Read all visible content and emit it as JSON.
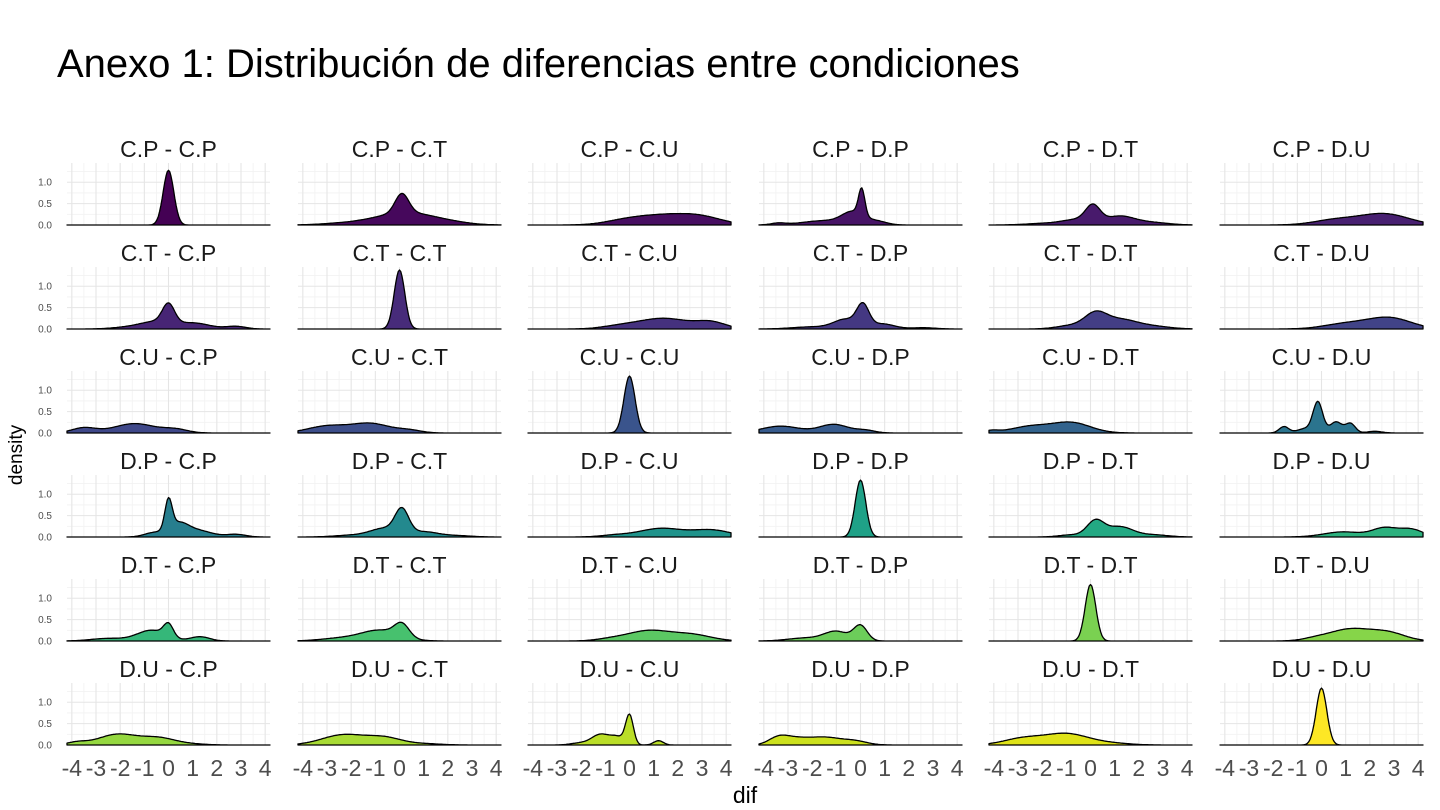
{
  "chart_data": {
    "type": "area",
    "title": "Anexo 1: Distribución de diferencias entre condiciones",
    "xlabel": "dif",
    "ylabel": "density",
    "xlim": [
      -4.2,
      4.2
    ],
    "ylim": [
      0,
      1.45
    ],
    "x_ticks": [
      -4,
      -3,
      -2,
      -1,
      0,
      1,
      2,
      3,
      4
    ],
    "x_tick_labels": [
      "-4",
      "-3",
      "-2",
      "-1",
      "0",
      "1",
      "2",
      "3",
      "4"
    ],
    "y_ticks": [
      0,
      0.5,
      1
    ],
    "y_tick_labels": [
      "0.0",
      "0.5",
      "1.0"
    ],
    "grid": true,
    "legend": "none",
    "facet_rows": 6,
    "facet_cols": 6,
    "panels": [
      {
        "label": "C.P - C.P",
        "color": "#440154",
        "peaks": [
          [
            0,
            1.28,
            0.22
          ]
        ]
      },
      {
        "label": "C.P - C.T",
        "color": "#46075A",
        "peaks": [
          [
            0.1,
            0.45,
            0.28
          ],
          [
            -0.3,
            0.2,
            1.0
          ],
          [
            0.9,
            0.15,
            0.9
          ],
          [
            -2.3,
            0.04,
            0.9
          ],
          [
            2.2,
            0.05,
            0.8
          ]
        ]
      },
      {
        "label": "C.P - C.U",
        "color": "#470D60",
        "peaks": [
          [
            1.3,
            0.22,
            1.2
          ],
          [
            3,
            0.15,
            0.9
          ],
          [
            -0.3,
            0.06,
            0.8
          ]
        ]
      },
      {
        "label": "C.P - D.P",
        "color": "#471365",
        "peaks": [
          [
            0.05,
            0.62,
            0.13
          ],
          [
            -0.3,
            0.28,
            0.45
          ],
          [
            -1.5,
            0.1,
            0.9
          ],
          [
            0.7,
            0.08,
            0.4
          ],
          [
            -3.4,
            0.04,
            0.3
          ]
        ]
      },
      {
        "label": "C.P - D.T",
        "color": "#48196B",
        "peaks": [
          [
            0.1,
            0.38,
            0.3
          ],
          [
            1.2,
            0.2,
            0.6
          ],
          [
            -0.5,
            0.12,
            0.6
          ],
          [
            2.5,
            0.06,
            0.7
          ],
          [
            -1.8,
            0.04,
            0.8
          ]
        ]
      },
      {
        "label": "C.P - D.U",
        "color": "#481F70",
        "peaks": [
          [
            0.6,
            0.12,
            0.9
          ],
          [
            2.6,
            0.26,
            1.0
          ]
        ]
      },
      {
        "label": "C.T - C.P",
        "color": "#472575",
        "peaks": [
          [
            0,
            0.45,
            0.25
          ],
          [
            -0.5,
            0.15,
            0.6
          ],
          [
            1,
            0.14,
            0.7
          ],
          [
            2.8,
            0.06,
            0.4
          ],
          [
            -1.5,
            0.05,
            0.7
          ]
        ]
      },
      {
        "label": "C.T - C.T",
        "color": "#472A7A",
        "peaks": [
          [
            0,
            1.38,
            0.22
          ]
        ]
      },
      {
        "label": "C.T - C.U",
        "color": "#46307E",
        "peaks": [
          [
            1.4,
            0.25,
            1.1
          ],
          [
            3.4,
            0.14,
            0.6
          ],
          [
            -0.5,
            0.05,
            0.7
          ]
        ]
      },
      {
        "label": "C.T - D.P",
        "color": "#453681",
        "peaks": [
          [
            0.1,
            0.5,
            0.25
          ],
          [
            -0.6,
            0.22,
            0.5
          ],
          [
            0.9,
            0.12,
            0.5
          ],
          [
            -2,
            0.05,
            0.8
          ],
          [
            2.6,
            0.03,
            0.5
          ]
        ]
      },
      {
        "label": "C.T - D.T",
        "color": "#433C84",
        "peaks": [
          [
            0.2,
            0.32,
            0.45
          ],
          [
            1.2,
            0.22,
            0.7
          ],
          [
            -0.8,
            0.08,
            0.6
          ],
          [
            2.6,
            0.06,
            0.7
          ]
        ]
      },
      {
        "label": "C.T - D.U",
        "color": "#424186",
        "peaks": [
          [
            1,
            0.12,
            0.9
          ],
          [
            2.8,
            0.26,
            0.9
          ]
        ]
      },
      {
        "label": "C.U - C.P",
        "color": "#404688",
        "peaks": [
          [
            -1.4,
            0.22,
            0.85
          ],
          [
            -3.5,
            0.12,
            0.5
          ],
          [
            0.3,
            0.08,
            0.5
          ]
        ]
      },
      {
        "label": "C.U - C.T",
        "color": "#3E4C8A",
        "peaks": [
          [
            -1.2,
            0.22,
            0.8
          ],
          [
            -3.0,
            0.16,
            0.8
          ],
          [
            0.4,
            0.06,
            0.5
          ]
        ]
      },
      {
        "label": "C.U - C.U",
        "color": "#3B518B",
        "peaks": [
          [
            0,
            1.33,
            0.23
          ]
        ]
      },
      {
        "label": "C.U - D.P",
        "color": "#39568C",
        "peaks": [
          [
            -1.1,
            0.2,
            0.6
          ],
          [
            -3.3,
            0.16,
            0.8
          ],
          [
            0.2,
            0.06,
            0.4
          ]
        ]
      },
      {
        "label": "C.U - D.T",
        "color": "#365C8D",
        "peaks": [
          [
            -0.8,
            0.24,
            0.8
          ],
          [
            -2.5,
            0.15,
            0.8
          ],
          [
            -4.1,
            0.05,
            0.3
          ]
        ]
      },
      {
        "label": "C.U - D.U",
        "color": "#34608D",
        "peaks": [
          [
            -0.15,
            0.72,
            0.2
          ],
          [
            0.6,
            0.26,
            0.25
          ],
          [
            1.2,
            0.22,
            0.2
          ],
          [
            -1.55,
            0.15,
            0.2
          ],
          [
            2.2,
            0.04,
            0.3
          ],
          [
            -0.7,
            0.1,
            0.3
          ]
        ]
      },
      {
        "label": "D.P - C.P",
        "color": "#31668E",
        "peaks": [
          [
            0,
            0.7,
            0.15
          ],
          [
            0.4,
            0.28,
            0.4
          ],
          [
            1.2,
            0.15,
            0.6
          ],
          [
            2.8,
            0.06,
            0.4
          ],
          [
            -0.6,
            0.1,
            0.4
          ]
        ]
      },
      {
        "label": "D.P - C.T",
        "color": "#2F6B8E",
        "peaks": [
          [
            0.1,
            0.55,
            0.28
          ],
          [
            -0.6,
            0.2,
            0.6
          ],
          [
            1,
            0.12,
            0.6
          ],
          [
            -2,
            0.04,
            0.7
          ],
          [
            2.4,
            0.03,
            0.6
          ]
        ]
      },
      {
        "label": "D.P - C.U",
        "color": "#2D708E",
        "peaks": [
          [
            1.3,
            0.2,
            0.9
          ],
          [
            3.4,
            0.16,
            0.8
          ],
          [
            -0.6,
            0.04,
            0.6
          ]
        ]
      },
      {
        "label": "D.P - D.P",
        "color": "#2B758E",
        "peaks": [
          [
            0,
            1.33,
            0.22
          ]
        ]
      },
      {
        "label": "D.P - D.T",
        "color": "#297A8E",
        "peaks": [
          [
            0.2,
            0.36,
            0.35
          ],
          [
            1.2,
            0.24,
            0.55
          ],
          [
            -0.8,
            0.05,
            0.5
          ],
          [
            2.6,
            0.05,
            0.6
          ]
        ]
      },
      {
        "label": "D.P - D.U",
        "color": "#277F8E",
        "peaks": [
          [
            0.9,
            0.12,
            0.8
          ],
          [
            2.6,
            0.2,
            0.5
          ],
          [
            3.7,
            0.18,
            0.5
          ]
        ]
      },
      {
        "label": "D.T - C.P",
        "color": "#25848E",
        "peaks": [
          [
            0,
            0.3,
            0.2
          ],
          [
            -0.7,
            0.25,
            0.6
          ],
          [
            1.3,
            0.1,
            0.4
          ],
          [
            -2.5,
            0.06,
            0.7
          ]
        ]
      },
      {
        "label": "D.T - C.T",
        "color": "#23888E",
        "peaks": [
          [
            0.1,
            0.3,
            0.3
          ],
          [
            -0.8,
            0.25,
            0.8
          ],
          [
            -2.5,
            0.06,
            0.8
          ]
        ]
      },
      {
        "label": "D.T - C.U",
        "color": "#218D8D",
        "peaks": [
          [
            0.8,
            0.24,
            0.9
          ],
          [
            2.6,
            0.14,
            0.8
          ],
          [
            -0.8,
            0.04,
            0.6
          ]
        ]
      },
      {
        "label": "D.T - D.P",
        "color": "#1F928C",
        "peaks": [
          [
            0,
            0.35,
            0.28
          ],
          [
            -1,
            0.22,
            0.5
          ],
          [
            -2.3,
            0.07,
            0.7
          ]
        ]
      },
      {
        "label": "D.T - D.T",
        "color": "#1F978B",
        "peaks": [
          [
            0,
            1.32,
            0.22
          ]
        ]
      },
      {
        "label": "D.T - D.U",
        "color": "#1E9C89",
        "peaks": [
          [
            1.2,
            0.28,
            0.9
          ],
          [
            2.8,
            0.17,
            0.7
          ],
          [
            -0.3,
            0.04,
            0.5
          ]
        ]
      },
      {
        "label": "D.U - C.P",
        "color": "#20A486",
        "peaks": [
          [
            -2.1,
            0.25,
            0.8
          ],
          [
            -0.4,
            0.16,
            0.7
          ],
          [
            -3.8,
            0.06,
            0.4
          ],
          [
            1,
            0.02,
            0.6
          ]
        ]
      },
      {
        "label": "D.U - C.T",
        "color": "#24AA83",
        "peaks": [
          [
            -2.3,
            0.24,
            0.9
          ],
          [
            -0.6,
            0.16,
            0.7
          ],
          [
            1,
            0.03,
            0.7
          ]
        ]
      },
      {
        "label": "D.U - C.U",
        "color": "#29AF7F",
        "peaks": [
          [
            0,
            0.68,
            0.16
          ],
          [
            -1.2,
            0.24,
            0.35
          ],
          [
            -0.5,
            0.18,
            0.3
          ],
          [
            1.2,
            0.1,
            0.2
          ],
          [
            -2,
            0.05,
            0.4
          ]
        ]
      },
      {
        "label": "D.U - D.P",
        "color": "#2EB37C",
        "peaks": [
          [
            -3.4,
            0.17,
            0.4
          ],
          [
            -1.5,
            0.18,
            0.7
          ],
          [
            -2.7,
            0.12,
            0.5
          ],
          [
            -0.2,
            0.08,
            0.5
          ]
        ]
      },
      {
        "label": "D.U - D.T",
        "color": "#35B779",
        "peaks": [
          [
            -1,
            0.26,
            0.9
          ],
          [
            -2.8,
            0.15,
            0.8
          ],
          [
            0.8,
            0.04,
            0.8
          ]
        ]
      },
      {
        "label": "D.U - D.U",
        "color": "#3DBC74",
        "peaks": [
          [
            0,
            1.33,
            0.22
          ]
        ]
      }
    ],
    "row_colors": [
      [
        "#440154",
        "#46085C",
        "#470E61",
        "#471466",
        "#481A6C",
        "#482071"
      ],
      [
        "#472575",
        "#472B7A",
        "#45317E",
        "#443882",
        "#433E85",
        "#414387"
      ],
      [
        "#3F4889",
        "#3D4E8A",
        "#3A548C",
        "#375B8D",
        "#33638D",
        "#2B748E"
      ],
      [
        "#277E8E",
        "#23898E",
        "#1F938B",
        "#1FA187",
        "#23A983",
        "#2CB17E"
      ],
      [
        "#35B779",
        "#47C16E",
        "#5BC863",
        "#6CCD5A",
        "#7AD151",
        "#86D549"
      ],
      [
        "#95D840",
        "#A8DB34",
        "#BADE28",
        "#CCE11E",
        "#DFE318",
        "#FDE725"
      ]
    ]
  }
}
